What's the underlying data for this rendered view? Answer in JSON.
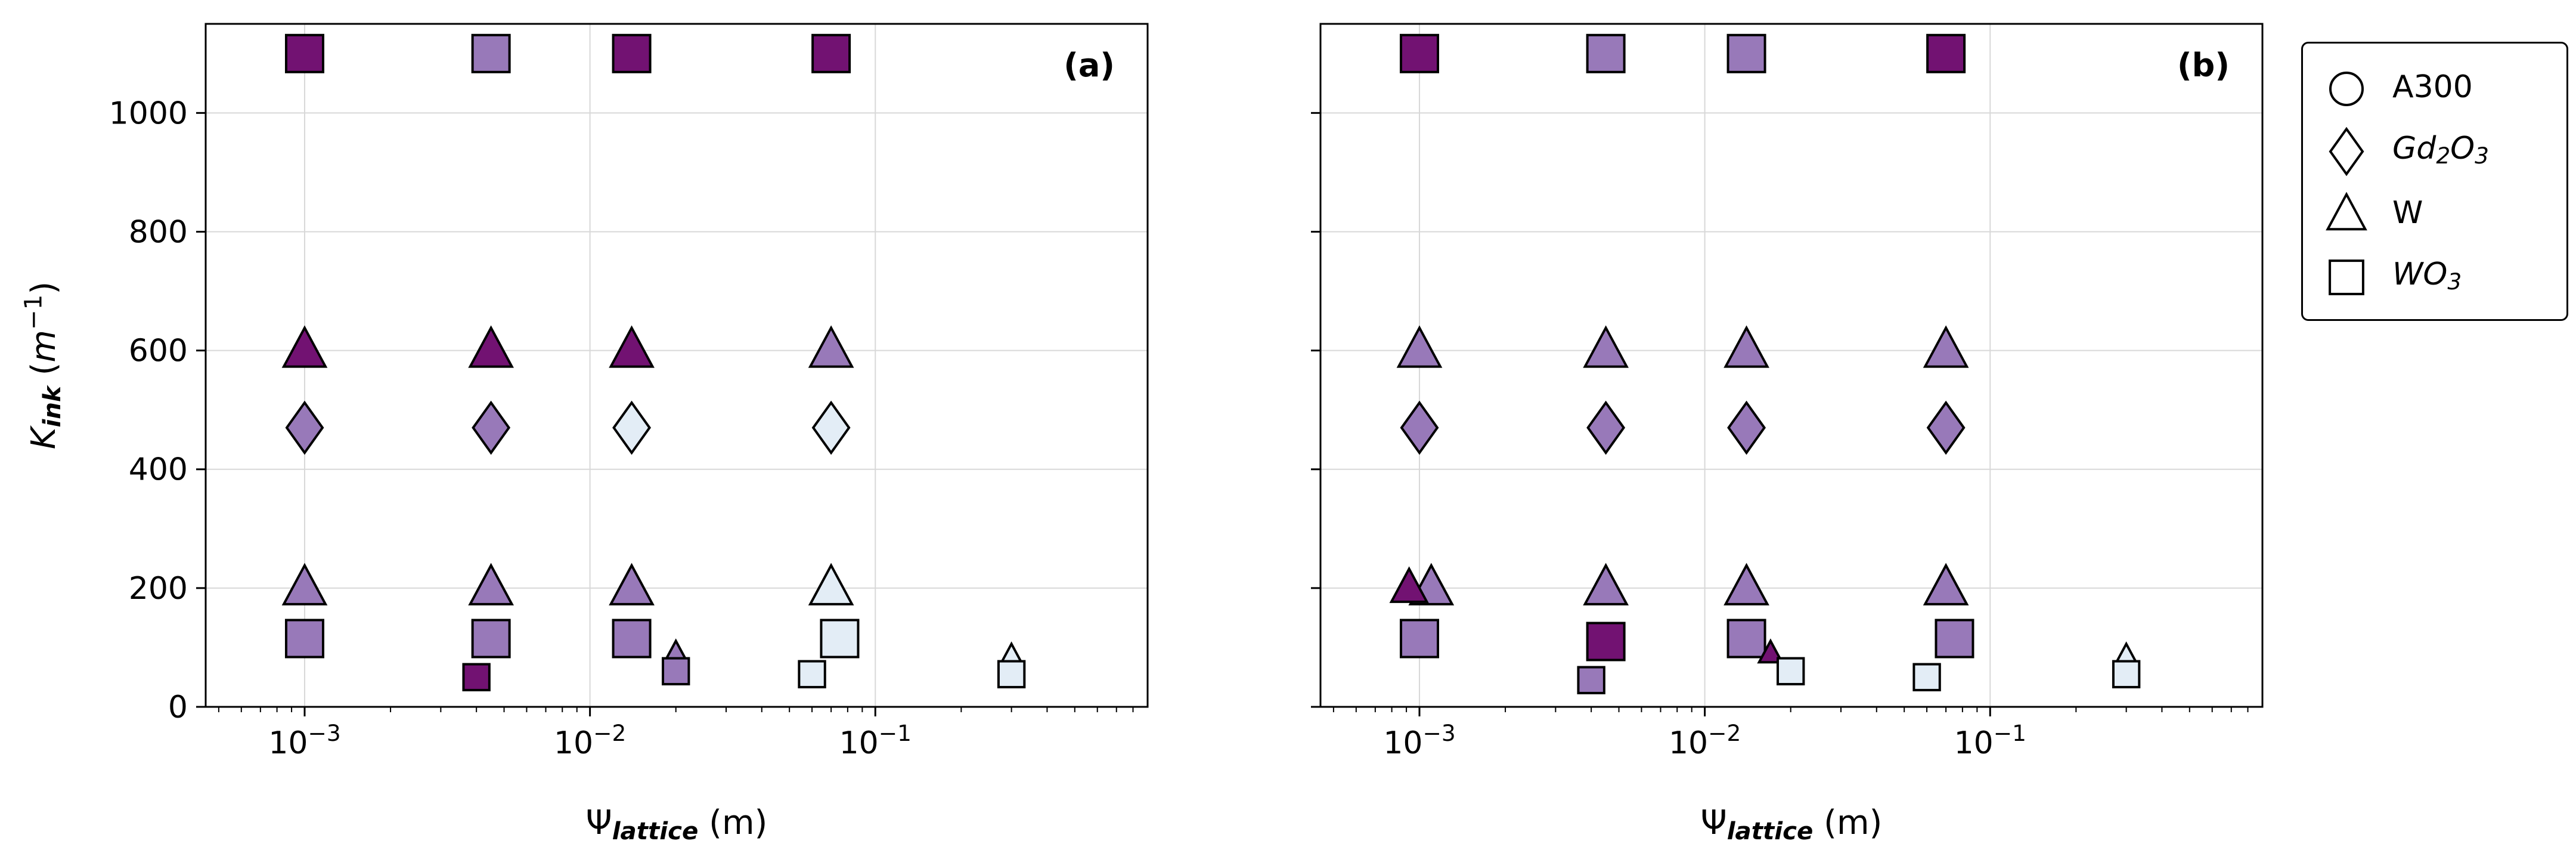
{
  "figure": {
    "background": "#ffffff",
    "palette": {
      "dark": "#721272",
      "medium": "#9879b9",
      "light": "#e3edf6",
      "edge": "#000000",
      "grid": "#d8d8d8",
      "text": "#000000"
    },
    "ylabel": [
      {
        "t": "K",
        "s": "i"
      },
      {
        "t": "ink",
        "s": "isub"
      },
      {
        "t": " (",
        "s": ""
      },
      {
        "t": "m",
        "s": "i"
      },
      {
        "t": "−1",
        "s": "sup"
      },
      {
        "t": ")",
        "s": ""
      }
    ],
    "xlabel": [
      {
        "t": "Ψ",
        "s": ""
      },
      {
        "t": "lattice",
        "s": "isub"
      },
      {
        "t": " (m)",
        "s": ""
      }
    ],
    "legend": {
      "position": "outside-right",
      "entries": [
        {
          "marker": "circle",
          "label": [
            {
              "t": "A300",
              "s": ""
            }
          ]
        },
        {
          "marker": "diamond",
          "label": [
            {
              "t": "Gd",
              "s": "i"
            },
            {
              "t": "2",
              "s": "isub"
            },
            {
              "t": "O",
              "s": "i"
            },
            {
              "t": "3",
              "s": "isub"
            }
          ]
        },
        {
          "marker": "triangle",
          "label": [
            {
              "t": "W",
              "s": ""
            }
          ]
        },
        {
          "marker": "square",
          "label": [
            {
              "t": "W",
              "s": "i"
            },
            {
              "t": "O",
              "s": "i"
            },
            {
              "t": "3",
              "s": "isub"
            }
          ]
        }
      ]
    },
    "xticks": [
      {
        "v": 0.001,
        "label": [
          {
            "t": "10",
            "s": ""
          },
          {
            "t": "−3",
            "s": "sup"
          }
        ]
      },
      {
        "v": 0.01,
        "label": [
          {
            "t": "10",
            "s": ""
          },
          {
            "t": "−2",
            "s": "sup"
          }
        ]
      },
      {
        "v": 0.1,
        "label": [
          {
            "t": "10",
            "s": ""
          },
          {
            "t": "−1",
            "s": "sup"
          }
        ]
      }
    ],
    "yticks": [
      0,
      200,
      400,
      600,
      800,
      1000
    ]
  },
  "chart_data": [
    {
      "type": "scatter",
      "panel_label": "(a)",
      "xscale": "log",
      "xlim": [
        0.00045,
        0.9
      ],
      "ylim": [
        0,
        1150
      ],
      "grid": true,
      "points": [
        {
          "x": 0.001,
          "y": 1100,
          "marker": "square",
          "color": "dark",
          "scale": 1
        },
        {
          "x": 0.0045,
          "y": 1100,
          "marker": "square",
          "color": "medium",
          "scale": 1
        },
        {
          "x": 0.014,
          "y": 1100,
          "marker": "square",
          "color": "dark",
          "scale": 1
        },
        {
          "x": 0.07,
          "y": 1100,
          "marker": "square",
          "color": "dark",
          "scale": 1
        },
        {
          "x": 0.001,
          "y": 600,
          "marker": "triangle",
          "color": "dark",
          "scale": 1
        },
        {
          "x": 0.0045,
          "y": 600,
          "marker": "triangle",
          "color": "dark",
          "scale": 1
        },
        {
          "x": 0.014,
          "y": 600,
          "marker": "triangle",
          "color": "dark",
          "scale": 1
        },
        {
          "x": 0.07,
          "y": 600,
          "marker": "triangle",
          "color": "medium",
          "scale": 1
        },
        {
          "x": 0.001,
          "y": 470,
          "marker": "diamond",
          "color": "medium",
          "scale": 1
        },
        {
          "x": 0.0045,
          "y": 470,
          "marker": "diamond",
          "color": "medium",
          "scale": 1
        },
        {
          "x": 0.014,
          "y": 470,
          "marker": "diamond",
          "color": "light",
          "scale": 1
        },
        {
          "x": 0.07,
          "y": 470,
          "marker": "diamond",
          "color": "light",
          "scale": 1
        },
        {
          "x": 0.001,
          "y": 200,
          "marker": "triangle",
          "color": "medium",
          "scale": 1
        },
        {
          "x": 0.0045,
          "y": 200,
          "marker": "triangle",
          "color": "medium",
          "scale": 1
        },
        {
          "x": 0.014,
          "y": 200,
          "marker": "triangle",
          "color": "medium",
          "scale": 1
        },
        {
          "x": 0.07,
          "y": 200,
          "marker": "triangle",
          "color": "light",
          "scale": 1
        },
        {
          "x": 0.001,
          "y": 115,
          "marker": "square",
          "color": "medium",
          "scale": 1
        },
        {
          "x": 0.0045,
          "y": 115,
          "marker": "square",
          "color": "medium",
          "scale": 1
        },
        {
          "x": 0.004,
          "y": 50,
          "marker": "square",
          "color": "dark",
          "scale": 0.7
        },
        {
          "x": 0.014,
          "y": 115,
          "marker": "square",
          "color": "medium",
          "scale": 1
        },
        {
          "x": 0.02,
          "y": 90,
          "marker": "triangle",
          "color": "medium",
          "scale": 0.55
        },
        {
          "x": 0.02,
          "y": 60,
          "marker": "square",
          "color": "medium",
          "scale": 0.7
        },
        {
          "x": 0.06,
          "y": 55,
          "marker": "square",
          "color": "light",
          "scale": 0.7
        },
        {
          "x": 0.075,
          "y": 115,
          "marker": "square",
          "color": "light",
          "scale": 1
        },
        {
          "x": 0.3,
          "y": 85,
          "marker": "triangle",
          "color": "light",
          "scale": 0.55
        },
        {
          "x": 0.3,
          "y": 55,
          "marker": "square",
          "color": "light",
          "scale": 0.7
        }
      ]
    },
    {
      "type": "scatter",
      "panel_label": "(b)",
      "xscale": "log",
      "xlim": [
        0.00045,
        0.9
      ],
      "ylim": [
        0,
        1150
      ],
      "grid": true,
      "points": [
        {
          "x": 0.001,
          "y": 1100,
          "marker": "square",
          "color": "dark",
          "scale": 1
        },
        {
          "x": 0.0045,
          "y": 1100,
          "marker": "square",
          "color": "medium",
          "scale": 1
        },
        {
          "x": 0.014,
          "y": 1100,
          "marker": "square",
          "color": "medium",
          "scale": 1
        },
        {
          "x": 0.07,
          "y": 1100,
          "marker": "square",
          "color": "dark",
          "scale": 1
        },
        {
          "x": 0.001,
          "y": 600,
          "marker": "triangle",
          "color": "medium",
          "scale": 1
        },
        {
          "x": 0.0045,
          "y": 600,
          "marker": "triangle",
          "color": "medium",
          "scale": 1
        },
        {
          "x": 0.014,
          "y": 600,
          "marker": "triangle",
          "color": "medium",
          "scale": 1
        },
        {
          "x": 0.07,
          "y": 600,
          "marker": "triangle",
          "color": "medium",
          "scale": 1
        },
        {
          "x": 0.001,
          "y": 470,
          "marker": "diamond",
          "color": "medium",
          "scale": 1
        },
        {
          "x": 0.0045,
          "y": 470,
          "marker": "diamond",
          "color": "medium",
          "scale": 1
        },
        {
          "x": 0.014,
          "y": 470,
          "marker": "diamond",
          "color": "medium",
          "scale": 1
        },
        {
          "x": 0.07,
          "y": 470,
          "marker": "diamond",
          "color": "medium",
          "scale": 1
        },
        {
          "x": 0.0011,
          "y": 200,
          "marker": "triangle",
          "color": "medium",
          "scale": 1
        },
        {
          "x": 0.00092,
          "y": 200,
          "marker": "triangle",
          "color": "dark",
          "scale": 0.85
        },
        {
          "x": 0.0045,
          "y": 200,
          "marker": "triangle",
          "color": "medium",
          "scale": 1
        },
        {
          "x": 0.014,
          "y": 200,
          "marker": "triangle",
          "color": "medium",
          "scale": 1
        },
        {
          "x": 0.07,
          "y": 200,
          "marker": "triangle",
          "color": "medium",
          "scale": 1
        },
        {
          "x": 0.001,
          "y": 115,
          "marker": "square",
          "color": "medium",
          "scale": 1
        },
        {
          "x": 0.004,
          "y": 45,
          "marker": "square",
          "color": "medium",
          "scale": 0.7
        },
        {
          "x": 0.0045,
          "y": 110,
          "marker": "square",
          "color": "dark",
          "scale": 1
        },
        {
          "x": 0.014,
          "y": 115,
          "marker": "square",
          "color": "medium",
          "scale": 1
        },
        {
          "x": 0.017,
          "y": 90,
          "marker": "triangle",
          "color": "dark",
          "scale": 0.55
        },
        {
          "x": 0.02,
          "y": 60,
          "marker": "square",
          "color": "light",
          "scale": 0.7
        },
        {
          "x": 0.06,
          "y": 50,
          "marker": "square",
          "color": "light",
          "scale": 0.7
        },
        {
          "x": 0.075,
          "y": 115,
          "marker": "square",
          "color": "medium",
          "scale": 1
        },
        {
          "x": 0.3,
          "y": 85,
          "marker": "triangle",
          "color": "light",
          "scale": 0.55
        },
        {
          "x": 0.3,
          "y": 55,
          "marker": "square",
          "color": "light",
          "scale": 0.7
        }
      ]
    }
  ]
}
